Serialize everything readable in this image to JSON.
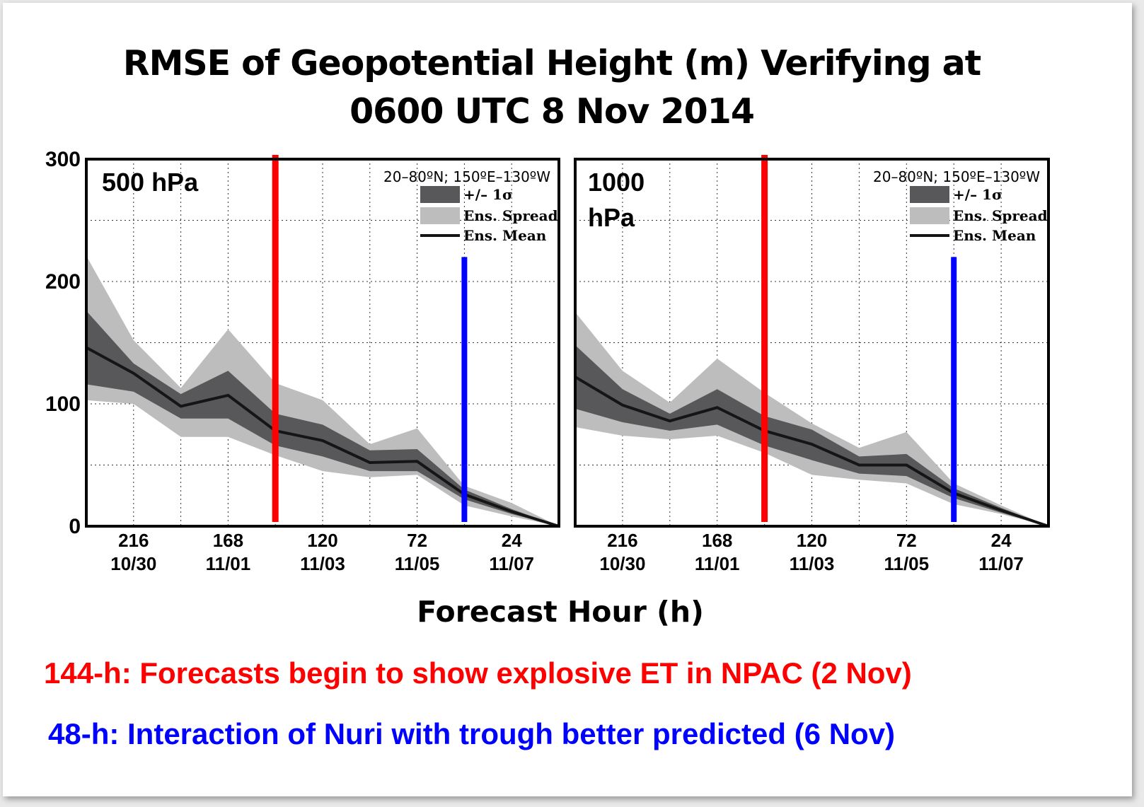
{
  "title_line1": "RMSE of Geopotential Height (m) Verifying at",
  "title_line2": "0600 UTC 8 Nov 2014",
  "xlabel": "Forecast Hour (h)",
  "note_red": "144-h:  Forecasts begin to show explosive ET in NPAC (2 Nov)",
  "note_blue": "48-h:  Interaction of Nuri with trough better predicted (6 Nov)",
  "colors": {
    "spread": "#bdbdbd",
    "sigma": "#58585a",
    "mean": "#151515",
    "red_line": "#ff0000",
    "blue_line": "#0000ff",
    "grid": "#333333"
  },
  "chart_data": [
    {
      "type": "area",
      "panel_label": "500 hPa",
      "region": "20–80ºN; 150ºE–130ºW",
      "legend": [
        {
          "key": "sigma",
          "label": "+/– 1σ"
        },
        {
          "key": "spread",
          "label": "Ens. Spread"
        },
        {
          "key": "mean",
          "label": "Ens. Mean"
        }
      ],
      "ylim": [
        0,
        300
      ],
      "yticks": [
        0,
        100,
        200,
        300
      ],
      "xlim": [
        240,
        0
      ],
      "x_reversed": true,
      "grid": true,
      "xticks": [
        {
          "x": 216,
          "label": "216",
          "date": "10/30"
        },
        {
          "x": 168,
          "label": "168",
          "date": "11/01"
        },
        {
          "x": 120,
          "label": "120",
          "date": "11/03"
        },
        {
          "x": 72,
          "label": "72",
          "date": "11/05"
        },
        {
          "x": 24,
          "label": "24",
          "date": "11/07"
        }
      ],
      "x": [
        240,
        216,
        192,
        168,
        144,
        120,
        96,
        72,
        48,
        24,
        0
      ],
      "mean": [
        146,
        125,
        98,
        107,
        78,
        70,
        52,
        53,
        26,
        12,
        0
      ],
      "sigma_upper": [
        176,
        133,
        108,
        127,
        92,
        83,
        62,
        63,
        30,
        14,
        0
      ],
      "sigma_lower": [
        116,
        110,
        88,
        88,
        66,
        57,
        45,
        45,
        22,
        10,
        0
      ],
      "spread_upper": [
        221,
        152,
        113,
        161,
        117,
        103,
        67,
        80,
        33,
        19,
        0
      ],
      "spread_lower": [
        103,
        100,
        73,
        73,
        58,
        45,
        40,
        42,
        17,
        8,
        0
      ],
      "vlines": [
        {
          "x": 144,
          "color": "red",
          "ymin": 0,
          "ymax": 300
        },
        {
          "x": 48,
          "color": "blue",
          "ymin": 0,
          "ymax": 220
        }
      ]
    },
    {
      "type": "area",
      "panel_label": "1000 hPa",
      "region": "20–80ºN; 150ºE–130ºW",
      "legend": [
        {
          "key": "sigma",
          "label": "+/– 1σ"
        },
        {
          "key": "spread",
          "label": "Ens. Spread"
        },
        {
          "key": "mean",
          "label": "Ens. Mean"
        }
      ],
      "ylim": [
        0,
        300
      ],
      "yticks": [
        0,
        100,
        200,
        300
      ],
      "xlim": [
        240,
        0
      ],
      "x_reversed": true,
      "grid": true,
      "xticks": [
        {
          "x": 216,
          "label": "216",
          "date": "10/30"
        },
        {
          "x": 168,
          "label": "168",
          "date": "11/01"
        },
        {
          "x": 120,
          "label": "120",
          "date": "11/03"
        },
        {
          "x": 72,
          "label": "72",
          "date": "11/05"
        },
        {
          "x": 24,
          "label": "24",
          "date": "11/07"
        }
      ],
      "x": [
        240,
        216,
        192,
        168,
        144,
        120,
        96,
        72,
        48,
        24,
        0
      ],
      "mean": [
        122,
        99,
        86,
        97,
        78,
        67,
        50,
        50,
        27,
        13,
        0
      ],
      "sigma_upper": [
        148,
        112,
        92,
        112,
        90,
        79,
        57,
        59,
        31,
        15,
        0
      ],
      "sigma_lower": [
        96,
        85,
        78,
        83,
        66,
        54,
        43,
        41,
        23,
        11,
        0
      ],
      "spread_upper": [
        175,
        127,
        101,
        137,
        109,
        84,
        64,
        77,
        35,
        17,
        0
      ],
      "spread_lower": [
        81,
        74,
        71,
        74,
        60,
        42,
        38,
        35,
        18,
        10,
        0
      ],
      "vlines": [
        {
          "x": 144,
          "color": "red",
          "ymin": 0,
          "ymax": 300
        },
        {
          "x": 48,
          "color": "blue",
          "ymin": 0,
          "ymax": 220
        }
      ]
    }
  ]
}
